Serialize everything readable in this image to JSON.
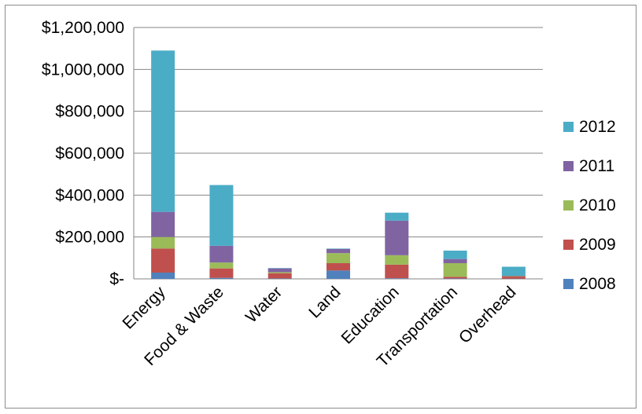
{
  "chart_data": {
    "type": "bar",
    "stacked": true,
    "title": "",
    "xlabel": "",
    "ylabel": "",
    "categories": [
      "Energy",
      "Food & Waste",
      "Water",
      "Land",
      "Education",
      "Transportation",
      "Overhead"
    ],
    "series": [
      {
        "name": "2008",
        "color": "#4f81bd",
        "values": [
          30000,
          5000,
          2000,
          40000,
          3000,
          2000,
          1000
        ]
      },
      {
        "name": "2009",
        "color": "#c0504d",
        "values": [
          115000,
          45000,
          25000,
          35000,
          65000,
          8000,
          10000
        ]
      },
      {
        "name": "2010",
        "color": "#9bbb59",
        "values": [
          55000,
          28000,
          5000,
          48000,
          45000,
          65000,
          2000
        ]
      },
      {
        "name": "2011",
        "color": "#8064a2",
        "values": [
          120000,
          80000,
          18000,
          20000,
          165000,
          20000,
          2000
        ]
      },
      {
        "name": "2012",
        "color": "#4bacc6",
        "values": [
          770000,
          290000,
          2000,
          2000,
          38000,
          40000,
          43000
        ]
      }
    ],
    "ylim": [
      0,
      1200000
    ],
    "yticks": [
      "$-",
      "$200,000",
      "$400,000",
      "$600,000",
      "$800,000",
      "$1,000,000",
      "$1,200,000"
    ],
    "legend_position": "right",
    "legend_order": [
      "2012",
      "2011",
      "2010",
      "2009",
      "2008"
    ],
    "grid": "horizontal"
  }
}
